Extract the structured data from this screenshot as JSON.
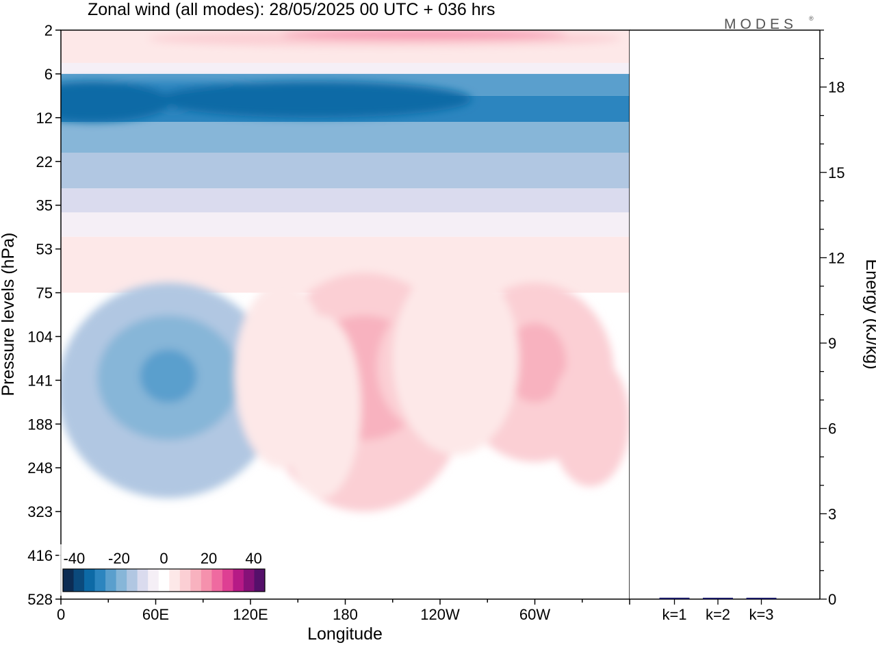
{
  "chart_data": [
    {
      "type": "heatmap",
      "title": "Zonal wind (all modes):  28/05/2025  00 UTC  + 036 hrs",
      "xlabel": "Longitude",
      "ylabel": "Pressure levels (hPa)",
      "x_ticks": [
        "0",
        "60E",
        "120E",
        "180",
        "120W",
        "60W"
      ],
      "y_ticks": [
        "2",
        "6",
        "12",
        "22",
        "35",
        "53",
        "75",
        "104",
        "141",
        "188",
        "248",
        "323",
        "416",
        "528"
      ],
      "x_lim": [
        0,
        360
      ],
      "colorbar": {
        "labels": [
          "-40",
          "-20",
          "0",
          "20",
          "40"
        ],
        "range": [
          -45,
          45
        ],
        "step": 5,
        "colors": [
          "#0c2c53",
          "#0b4a7c",
          "#0d6aa6",
          "#2c85bf",
          "#5a9fcd",
          "#87b6d8",
          "#b1c7e2",
          "#dadbee",
          "#f5eff6",
          "#ffffff",
          "#fde8e8",
          "#fbcfd4",
          "#f8b2bf",
          "#f591ad",
          "#ef6aa0",
          "#de3f93",
          "#b61a86",
          "#861178",
          "#55106a"
        ]
      },
      "features": [
        {
          "label": "easterly jet core",
          "lon": 70,
          "level": 12,
          "value": -30
        },
        {
          "label": "westerly maximum aloft",
          "lon": 230,
          "level": 2,
          "value": 25
        },
        {
          "label": "easterly tropospheric core",
          "lon": 68,
          "level": 141,
          "value": -25
        },
        {
          "label": "westerly core",
          "lon": 192,
          "level": 141,
          "value": 15
        },
        {
          "label": "westerly core",
          "lon": 235,
          "level": 130,
          "value": 12
        },
        {
          "label": "westerly core",
          "lon": 300,
          "level": 130,
          "value": 18
        }
      ]
    },
    {
      "type": "bar",
      "ylabel": "Energy (kJ/kg)",
      "categories": [
        "k=1",
        "k=2",
        "k=3"
      ],
      "values": [
        0.05,
        0.02,
        0.02
      ],
      "ylim": [
        0,
        20
      ],
      "y_ticks": [
        "0",
        "3",
        "6",
        "9",
        "12",
        "15",
        "18"
      ],
      "bar_color": "#1a1a66"
    }
  ],
  "logo": "MODES"
}
